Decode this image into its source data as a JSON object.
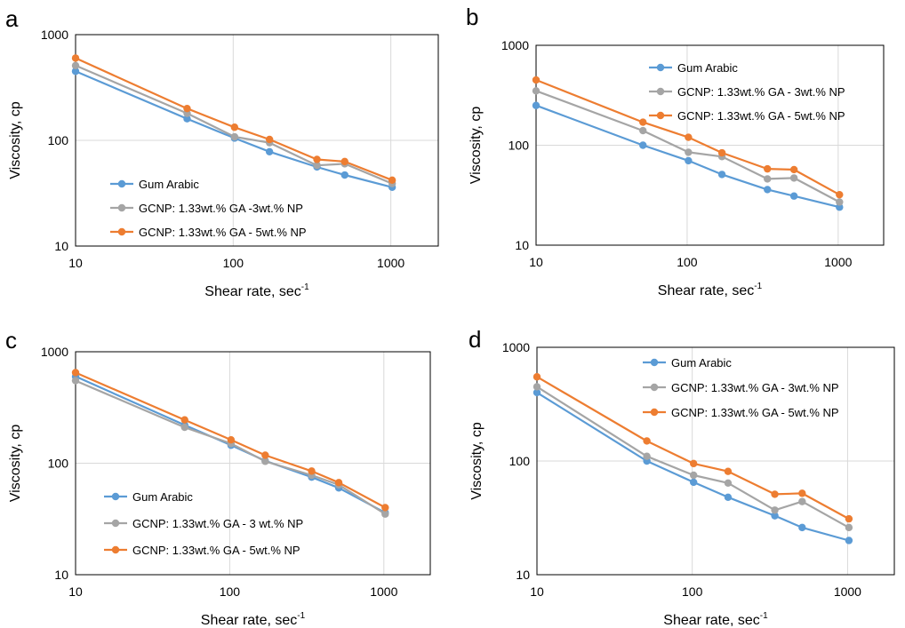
{
  "figure": {
    "panels_order": [
      "a",
      "b",
      "c",
      "d"
    ]
  },
  "chart_data": [
    {
      "panel": "a",
      "type": "line",
      "xlabel": "Shear rate, sec",
      "xlabel_superscript": "-1",
      "ylabel": "Viscosity, cp",
      "x_scale": "log",
      "y_scale": "log",
      "xlim": [
        10,
        2000
      ],
      "ylim": [
        10,
        1000
      ],
      "x_ticks": [
        "10",
        "100",
        "1000"
      ],
      "y_ticks": [
        "10",
        "100",
        "1000"
      ],
      "grid": true,
      "legend_position": "left",
      "series": [
        {
          "name": "Gum Arabic",
          "color": "#5B9BD5",
          "x": [
            10,
            51,
            102,
            170,
            340,
            510,
            1020
          ],
          "y": [
            450,
            160,
            105,
            78,
            56,
            47,
            36
          ]
        },
        {
          "name": "GCNP: 1.33wt.% GA -3wt.% NP",
          "color": "#A5A5A5",
          "x": [
            10,
            51,
            102,
            170,
            340,
            510,
            1020
          ],
          "y": [
            510,
            180,
            108,
            95,
            58,
            60,
            39
          ]
        },
        {
          "name": "GCNP: 1.33wt.% GA - 5wt.% NP",
          "color": "#ED7D31",
          "x": [
            10,
            51,
            102,
            170,
            340,
            510,
            1020
          ],
          "y": [
            600,
            200,
            133,
            102,
            66,
            63,
            42
          ]
        }
      ]
    },
    {
      "panel": "b",
      "type": "line",
      "xlabel": "Shear rate, sec",
      "xlabel_superscript": "-1",
      "ylabel": "Viscosity, cp",
      "x_scale": "log",
      "y_scale": "log",
      "xlim": [
        10,
        2000
      ],
      "ylim": [
        10,
        1000
      ],
      "x_ticks": [
        "10",
        "100",
        "1000"
      ],
      "y_ticks": [
        "10",
        "100",
        "1000"
      ],
      "grid": true,
      "legend_position": "top-center",
      "series": [
        {
          "name": "Gum Arabic",
          "color": "#5B9BD5",
          "x": [
            10,
            51,
            102,
            170,
            340,
            510,
            1020
          ],
          "y": [
            250,
            100,
            70,
            51,
            36,
            31,
            24
          ]
        },
        {
          "name": "GCNP: 1.33wt.% GA - 3wt.% NP",
          "color": "#A5A5A5",
          "x": [
            10,
            51,
            102,
            170,
            340,
            510,
            1020
          ],
          "y": [
            350,
            140,
            85,
            77,
            46,
            47,
            27
          ]
        },
        {
          "name": "GCNP: 1.33wt.% GA - 5wt.% NP",
          "color": "#ED7D31",
          "x": [
            10,
            51,
            102,
            170,
            340,
            510,
            1020
          ],
          "y": [
            450,
            170,
            120,
            84,
            58,
            57,
            32
          ]
        }
      ]
    },
    {
      "panel": "c",
      "type": "line",
      "xlabel": "Shear rate, sec",
      "xlabel_superscript": "-1",
      "ylabel": "Viscosity, cp",
      "x_scale": "log",
      "y_scale": "log",
      "xlim": [
        10,
        2000
      ],
      "ylim": [
        10,
        1000
      ],
      "x_ticks": [
        "10",
        "100",
        "1000"
      ],
      "y_ticks": [
        "10",
        "100",
        "1000"
      ],
      "grid": true,
      "legend_position": "left",
      "series": [
        {
          "name": "Gum Arabic",
          "color": "#5B9BD5",
          "x": [
            10,
            51,
            102,
            170,
            340,
            510,
            1020
          ],
          "y": [
            600,
            220,
            145,
            105,
            75,
            60,
            36
          ]
        },
        {
          "name": "GCNP: 1.33wt.% GA - 3 wt.% NP",
          "color": "#A5A5A5",
          "x": [
            10,
            51,
            102,
            170,
            340,
            510,
            1020
          ],
          "y": [
            550,
            210,
            150,
            104,
            78,
            64,
            35
          ]
        },
        {
          "name": "GCNP: 1.33wt.% GA - 5wt.% NP",
          "color": "#ED7D31",
          "x": [
            10,
            51,
            102,
            170,
            340,
            510,
            1020
          ],
          "y": [
            650,
            245,
            162,
            118,
            85,
            67,
            40
          ]
        }
      ]
    },
    {
      "panel": "d",
      "type": "line",
      "xlabel": "Shear rate, sec",
      "xlabel_superscript": "-1",
      "ylabel": "Viscosity, cp",
      "x_scale": "log",
      "y_scale": "log",
      "xlim": [
        10,
        2000
      ],
      "ylim": [
        10,
        1000
      ],
      "x_ticks": [
        "10",
        "100",
        "1000"
      ],
      "y_ticks": [
        "10",
        "100",
        "1000"
      ],
      "grid": true,
      "legend_position": "top-center",
      "series": [
        {
          "name": "Gum Arabic",
          "color": "#5B9BD5",
          "x": [
            10,
            51,
            102,
            170,
            340,
            510,
            1020
          ],
          "y": [
            400,
            100,
            65,
            48,
            33,
            26,
            20
          ]
        },
        {
          "name": "GCNP: 1.33wt.% GA - 3wt.% NP",
          "color": "#A5A5A5",
          "x": [
            10,
            51,
            102,
            170,
            340,
            510,
            1020
          ],
          "y": [
            450,
            110,
            75,
            64,
            37,
            44,
            26
          ]
        },
        {
          "name": "GCNP: 1.33wt.% GA - 5wt.% NP",
          "color": "#ED7D31",
          "x": [
            10,
            51,
            102,
            170,
            340,
            510,
            1020
          ],
          "y": [
            550,
            150,
            95,
            81,
            51,
            52,
            31
          ]
        }
      ]
    }
  ]
}
